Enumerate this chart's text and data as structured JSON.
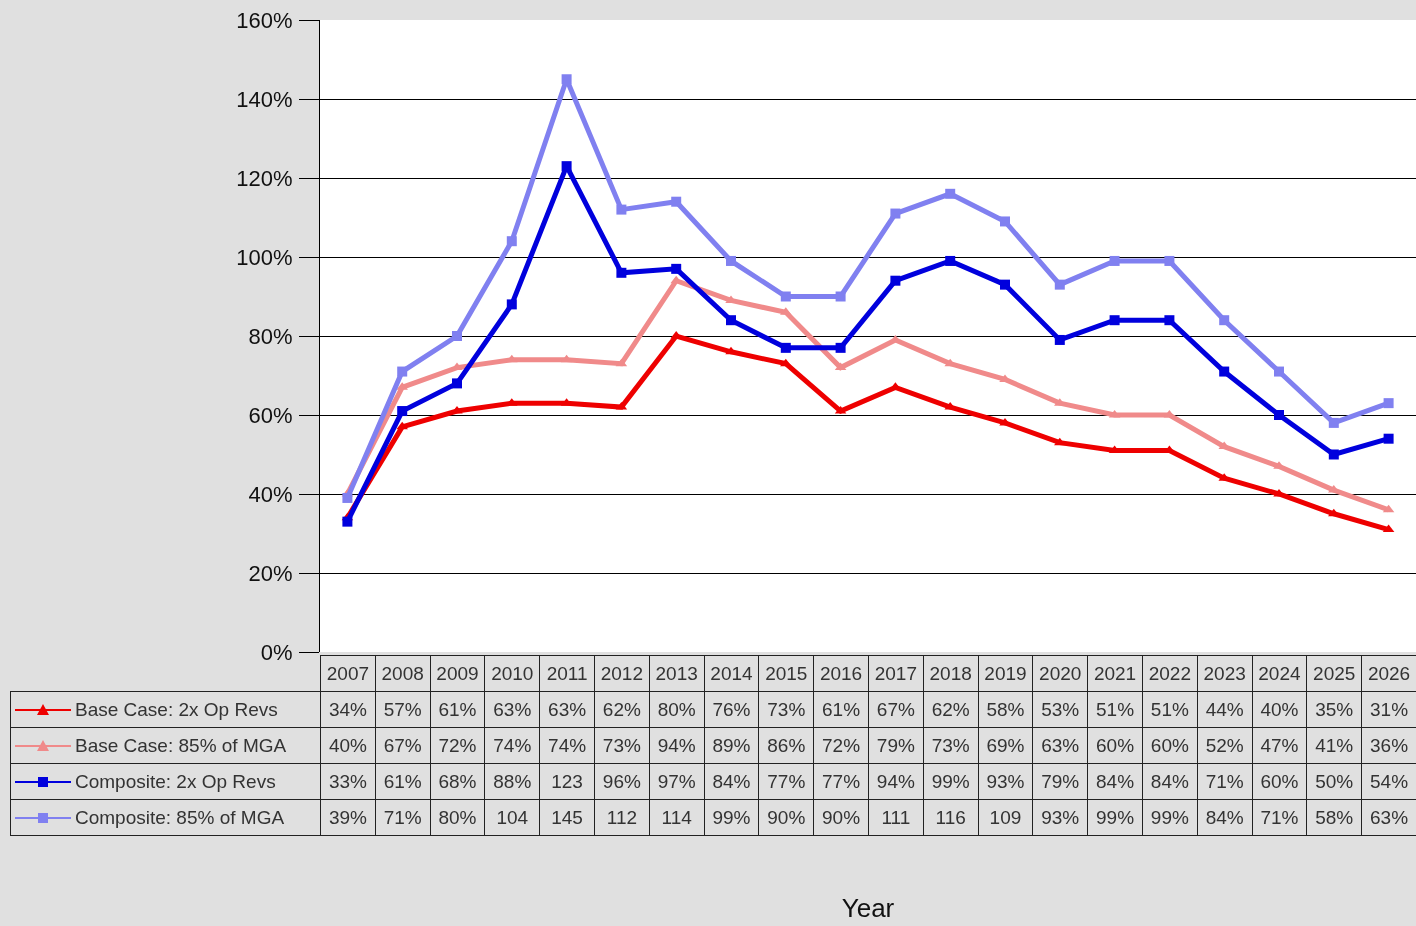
{
  "chart_data": {
    "type": "line",
    "annotations": [
      "Year"
    ],
    "categories": [
      "2007",
      "2008",
      "2009",
      "2010",
      "2011",
      "2012",
      "2013",
      "2014",
      "2015",
      "2016",
      "2017",
      "2018",
      "2019",
      "2020",
      "2021",
      "2022",
      "2023",
      "2024",
      "2025",
      "2026"
    ],
    "series": [
      {
        "name": "Base Case: 2x Op Revs",
        "color": "#ee0000",
        "marker": "triangle",
        "values": [
          34,
          57,
          61,
          63,
          63,
          62,
          80,
          76,
          73,
          61,
          67,
          62,
          58,
          53,
          51,
          51,
          44,
          40,
          35,
          31
        ],
        "value_labels": [
          "34%",
          "57%",
          "61%",
          "63%",
          "63%",
          "62%",
          "80%",
          "76%",
          "73%",
          "61%",
          "67%",
          "62%",
          "58%",
          "53%",
          "51%",
          "51%",
          "44%",
          "40%",
          "35%",
          "31%"
        ]
      },
      {
        "name": "Base Case: 85% of MGA",
        "color": "#f08a8a",
        "marker": "triangle",
        "values": [
          40,
          67,
          72,
          74,
          74,
          73,
          94,
          89,
          86,
          72,
          79,
          73,
          69,
          63,
          60,
          60,
          52,
          47,
          41,
          36
        ],
        "value_labels": [
          "40%",
          "67%",
          "72%",
          "74%",
          "74%",
          "73%",
          "94%",
          "89%",
          "86%",
          "72%",
          "79%",
          "73%",
          "69%",
          "63%",
          "60%",
          "60%",
          "52%",
          "47%",
          "41%",
          "36%"
        ]
      },
      {
        "name": "Composite: 2x Op Revs",
        "color": "#0000dd",
        "marker": "square",
        "values": [
          33,
          61,
          68,
          88,
          123,
          96,
          97,
          84,
          77,
          77,
          94,
          99,
          93,
          79,
          84,
          84,
          71,
          60,
          50,
          54
        ],
        "value_labels": [
          "33%",
          "61%",
          "68%",
          "88%",
          "123",
          "96%",
          "97%",
          "84%",
          "77%",
          "77%",
          "94%",
          "99%",
          "93%",
          "79%",
          "84%",
          "84%",
          "71%",
          "60%",
          "50%",
          "54%"
        ]
      },
      {
        "name": "Composite: 85% of MGA",
        "color": "#8080f0",
        "marker": "square",
        "values": [
          39,
          71,
          80,
          104,
          145,
          112,
          114,
          99,
          90,
          90,
          111,
          116,
          109,
          93,
          99,
          99,
          84,
          71,
          58,
          63
        ],
        "value_labels": [
          "39%",
          "71%",
          "80%",
          "104",
          "145",
          "112",
          "114",
          "99%",
          "90%",
          "90%",
          "111",
          "116",
          "109",
          "93%",
          "99%",
          "99%",
          "84%",
          "71%",
          "58%",
          "63%"
        ]
      }
    ],
    "ylim": [
      0,
      160
    ],
    "yticks": [
      {
        "value": 0,
        "label": "0%"
      },
      {
        "value": 20,
        "label": "20%"
      },
      {
        "value": 40,
        "label": "40%"
      },
      {
        "value": 60,
        "label": "60%"
      },
      {
        "value": 80,
        "label": "80%"
      },
      {
        "value": 100,
        "label": "100%"
      },
      {
        "value": 120,
        "label": "120%"
      },
      {
        "value": 140,
        "label": "140%"
      },
      {
        "value": 160,
        "label": "160%"
      }
    ],
    "grid": "y",
    "legend": "bottom",
    "tick_labels": "y"
  }
}
